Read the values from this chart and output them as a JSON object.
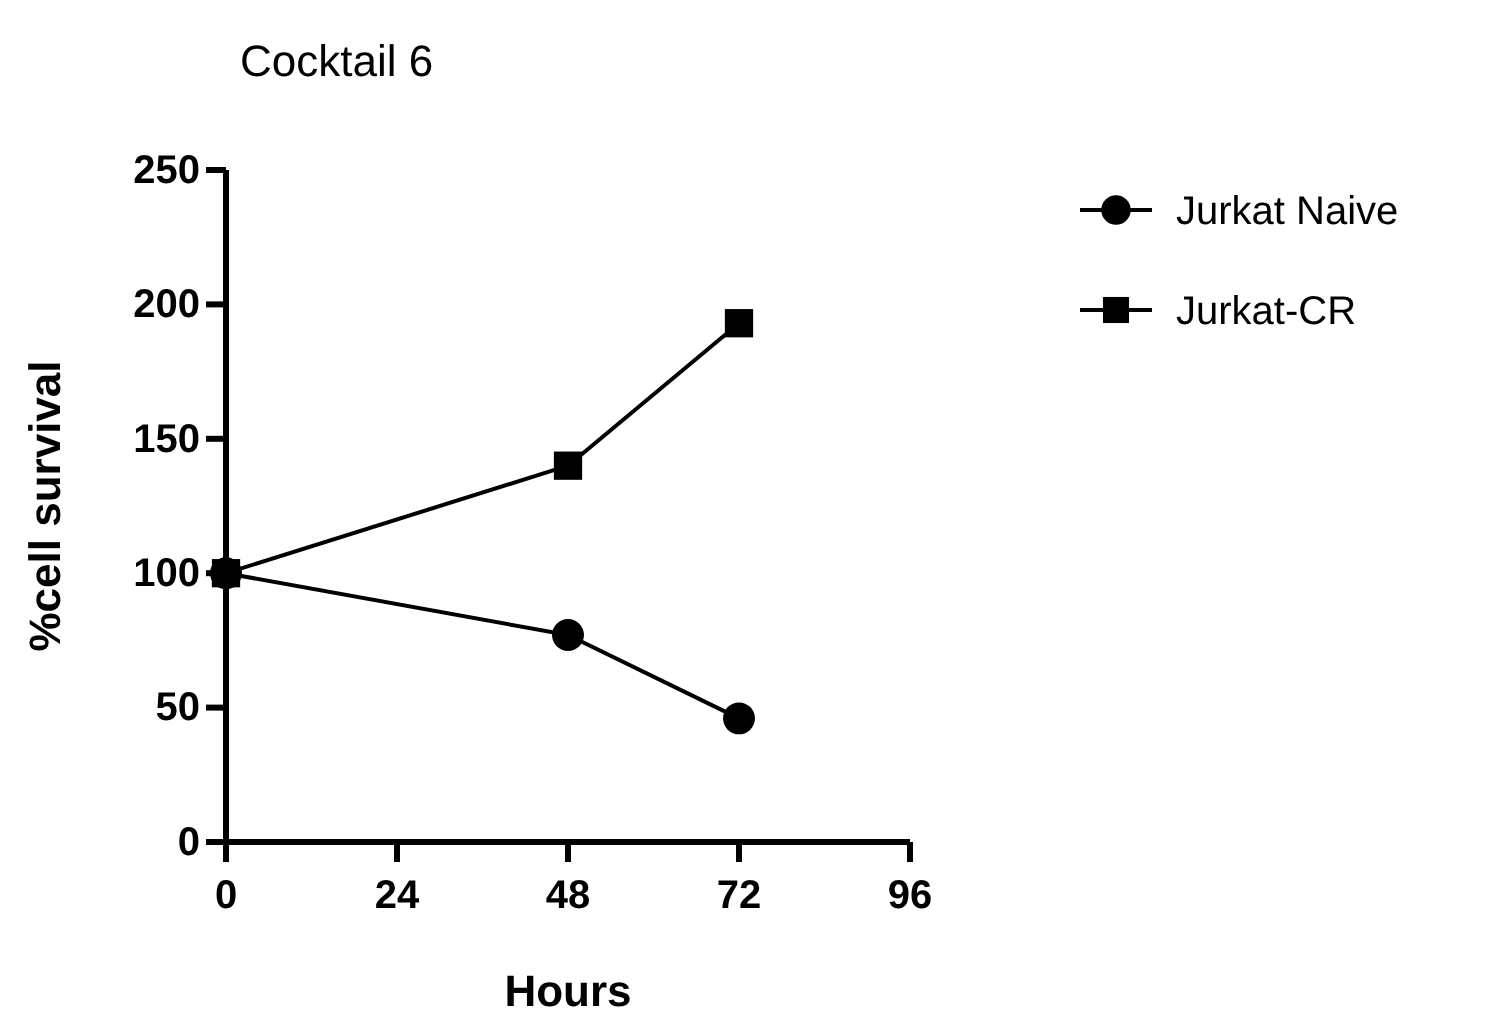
{
  "chart_data": {
    "type": "line",
    "title": "Cocktail 6",
    "xlabel": "Hours",
    "ylabel": "%cell survival",
    "xlim": [
      0,
      96
    ],
    "xticks": [
      0,
      24,
      48,
      72,
      96
    ],
    "ylim": [
      0,
      250
    ],
    "yticks": [
      0,
      50,
      100,
      150,
      200,
      250
    ],
    "series": [
      {
        "name": "Jurkat Naive",
        "color": "#000000",
        "marker": "circle",
        "x": [
          0,
          48,
          72
        ],
        "values": [
          100,
          77,
          46
        ]
      },
      {
        "name": "Jurkat-CR",
        "color": "#000000",
        "marker": "square",
        "x": [
          0,
          48,
          72
        ],
        "values": [
          100,
          140,
          193
        ]
      }
    ],
    "legend": "right",
    "grid": false
  }
}
